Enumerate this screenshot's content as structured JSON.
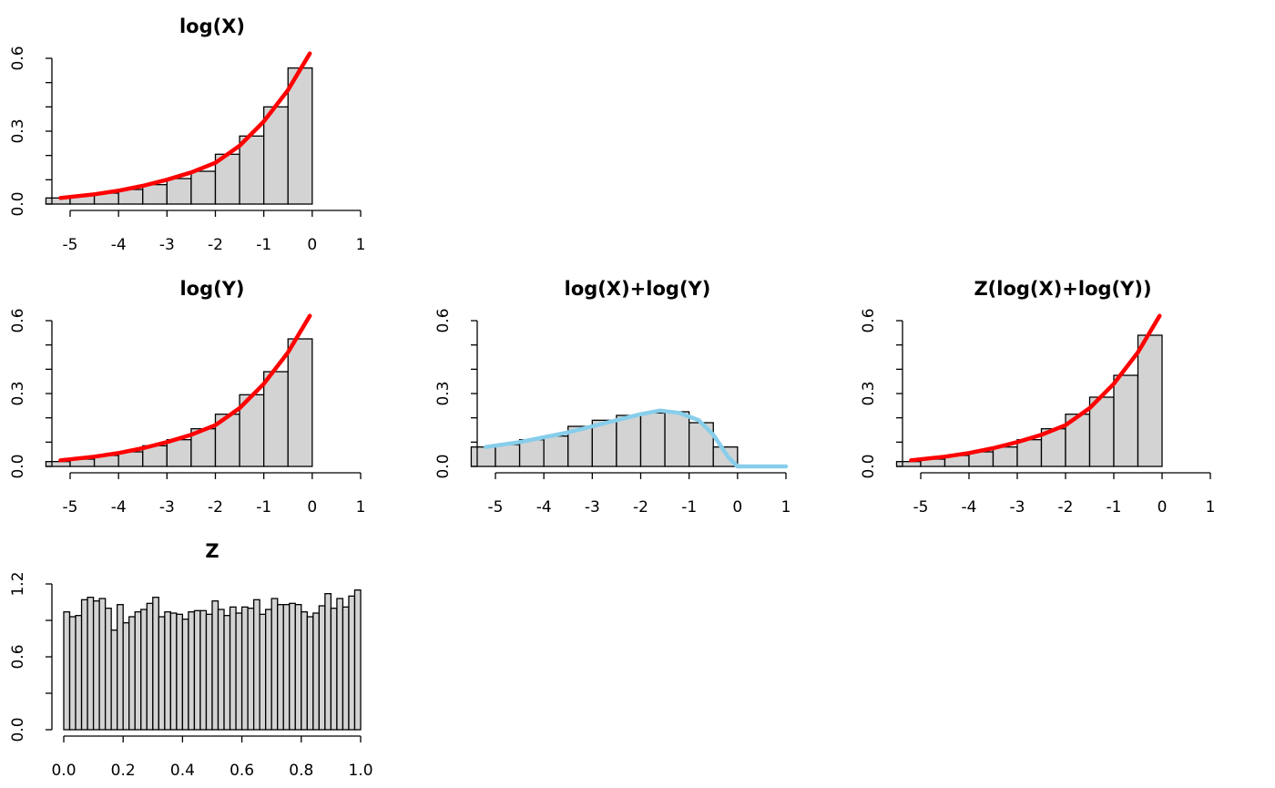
{
  "chart_data": [
    {
      "type": "histogram",
      "title": "log(X)",
      "bins": [
        -5.5,
        -5,
        -4.5,
        -4,
        -3.5,
        -3,
        -2.5,
        -2,
        -1.5,
        -1,
        -0.5,
        0
      ],
      "counts": [
        0.025,
        0.035,
        0.045,
        0.06,
        0.08,
        0.105,
        0.135,
        0.205,
        0.28,
        0.4,
        0.56
      ],
      "color": "#d3d3d3",
      "xlim": [
        -5,
        1
      ],
      "ylim": [
        0,
        0.6
      ],
      "xticks": [
        -5,
        -4,
        -3,
        -2,
        -1,
        0,
        1
      ],
      "yticks": [
        {
          "value": 0,
          "label": "0.0"
        },
        0.3,
        0.6
      ],
      "yminor": [
        0.1,
        0.2,
        0.4,
        0.5
      ],
      "curve": {
        "color": "#ff0000",
        "x": [
          -5.2,
          -4.5,
          -4,
          -3.5,
          -3,
          -2.5,
          -2,
          -1.5,
          -1,
          -0.5,
          -0.05
        ],
        "values": [
          0.025,
          0.04,
          0.055,
          0.075,
          0.1,
          0.13,
          0.17,
          0.24,
          0.34,
          0.47,
          0.62
        ]
      }
    },
    {
      "type": "histogram",
      "title": "log(Y)",
      "bins": [
        -5.5,
        -5,
        -4.5,
        -4,
        -3.5,
        -3,
        -2.5,
        -2,
        -1.5,
        -1,
        -0.5,
        0
      ],
      "counts": [
        0.02,
        0.03,
        0.045,
        0.06,
        0.085,
        0.11,
        0.155,
        0.215,
        0.295,
        0.39,
        0.525
      ],
      "color": "#d3d3d3",
      "xlim": [
        -5,
        1
      ],
      "ylim": [
        0,
        0.6
      ],
      "xticks": [
        -5,
        -4,
        -3,
        -2,
        -1,
        0,
        1
      ],
      "yticks": [
        {
          "value": 0,
          "label": "0.0"
        },
        0.3,
        0.6
      ],
      "yminor": [
        0.1,
        0.2,
        0.4,
        0.5
      ],
      "curve": {
        "color": "#ff0000",
        "x": [
          -5.2,
          -4.5,
          -4,
          -3.5,
          -3,
          -2.5,
          -2,
          -1.5,
          -1,
          -0.5,
          -0.05
        ],
        "values": [
          0.025,
          0.04,
          0.055,
          0.075,
          0.1,
          0.13,
          0.17,
          0.24,
          0.34,
          0.47,
          0.62
        ]
      }
    },
    {
      "type": "histogram",
      "title": "log(X)+log(Y)",
      "bins": [
        -5.5,
        -5,
        -4.5,
        -4,
        -3.5,
        -3,
        -2.5,
        -2,
        -1.5,
        -1,
        -0.5,
        0
      ],
      "counts": [
        0.08,
        0.09,
        0.11,
        0.125,
        0.165,
        0.19,
        0.21,
        0.22,
        0.225,
        0.18,
        0.08
      ],
      "color": "#d3d3d3",
      "xlim": [
        -5,
        1
      ],
      "ylim": [
        0,
        0.6
      ],
      "xticks": [
        -5,
        -4,
        -3,
        -2,
        -1,
        0,
        1
      ],
      "yticks": [
        {
          "value": 0,
          "label": "0.0"
        },
        0.3,
        0.6
      ],
      "yminor": [
        0.1,
        0.2,
        0.4,
        0.5
      ],
      "curve": {
        "color": "#87ceeb",
        "x": [
          -5.2,
          -4.5,
          -4,
          -3.5,
          -3,
          -2.5,
          -2,
          -1.6,
          -1.2,
          -0.8,
          -0.5,
          -0.2,
          0,
          1
        ],
        "values": [
          0.08,
          0.1,
          0.12,
          0.14,
          0.165,
          0.19,
          0.215,
          0.23,
          0.22,
          0.19,
          0.13,
          0.04,
          0,
          0
        ]
      }
    },
    {
      "type": "histogram",
      "title": "Z(log(X)+log(Y))",
      "bins": [
        -5.5,
        -5,
        -4.5,
        -4,
        -3.5,
        -3,
        -2.5,
        -2,
        -1.5,
        -1,
        -0.5,
        0
      ],
      "counts": [
        0.02,
        0.03,
        0.045,
        0.06,
        0.08,
        0.11,
        0.155,
        0.215,
        0.285,
        0.375,
        0.54
      ],
      "color": "#d3d3d3",
      "xlim": [
        -5,
        1
      ],
      "ylim": [
        0,
        0.6
      ],
      "xticks": [
        -5,
        -4,
        -3,
        -2,
        -1,
        0,
        1
      ],
      "yticks": [
        {
          "value": 0,
          "label": "0.0"
        },
        0.3,
        0.6
      ],
      "yminor": [
        0.1,
        0.2,
        0.4,
        0.5
      ],
      "curve": {
        "color": "#ff0000",
        "x": [
          -5.2,
          -4.5,
          -4,
          -3.5,
          -3,
          -2.5,
          -2,
          -1.5,
          -1,
          -0.5,
          -0.05
        ],
        "values": [
          0.025,
          0.04,
          0.055,
          0.075,
          0.1,
          0.13,
          0.17,
          0.24,
          0.34,
          0.47,
          0.62
        ]
      }
    },
    {
      "type": "histogram",
      "title": "Z",
      "bins": [
        0,
        0.02,
        0.04,
        0.06,
        0.08,
        0.1,
        0.12,
        0.14,
        0.16,
        0.18,
        0.2,
        0.22,
        0.24,
        0.26,
        0.28,
        0.3,
        0.32,
        0.34,
        0.36,
        0.38,
        0.4,
        0.42,
        0.44,
        0.46,
        0.48,
        0.5,
        0.52,
        0.54,
        0.56,
        0.58,
        0.6,
        0.62,
        0.64,
        0.66,
        0.68,
        0.7,
        0.72,
        0.74,
        0.76,
        0.78,
        0.8,
        0.82,
        0.84,
        0.86,
        0.88,
        0.9,
        0.92,
        0.94,
        0.96,
        0.98,
        1
      ],
      "counts": [
        0.97,
        0.93,
        0.94,
        1.07,
        1.09,
        1.06,
        1.08,
        1.0,
        0.82,
        1.03,
        0.88,
        0.93,
        0.97,
        0.99,
        1.04,
        1.09,
        0.93,
        0.97,
        0.96,
        0.95,
        0.91,
        0.97,
        0.98,
        0.98,
        0.95,
        1.06,
        0.99,
        0.94,
        1.01,
        0.96,
        1.01,
        1.0,
        1.07,
        0.95,
        0.99,
        1.08,
        1.03,
        1.03,
        1.04,
        1.03,
        0.97,
        0.93,
        0.96,
        1.02,
        1.12,
        1.0,
        1.08,
        1.01,
        1.1,
        1.15
      ],
      "color": "#d3d3d3",
      "xlim": [
        0,
        1
      ],
      "ylim": [
        0,
        1.2
      ],
      "xticks": [
        {
          "value": 0,
          "label": "0.0"
        },
        0.2,
        0.4,
        0.6,
        0.8,
        {
          "value": 1,
          "label": "1.0"
        }
      ],
      "yticks": [
        {
          "value": 0,
          "label": "0.0"
        },
        0.6,
        1.2
      ],
      "yminor": [
        0.3,
        0.9
      ]
    }
  ]
}
